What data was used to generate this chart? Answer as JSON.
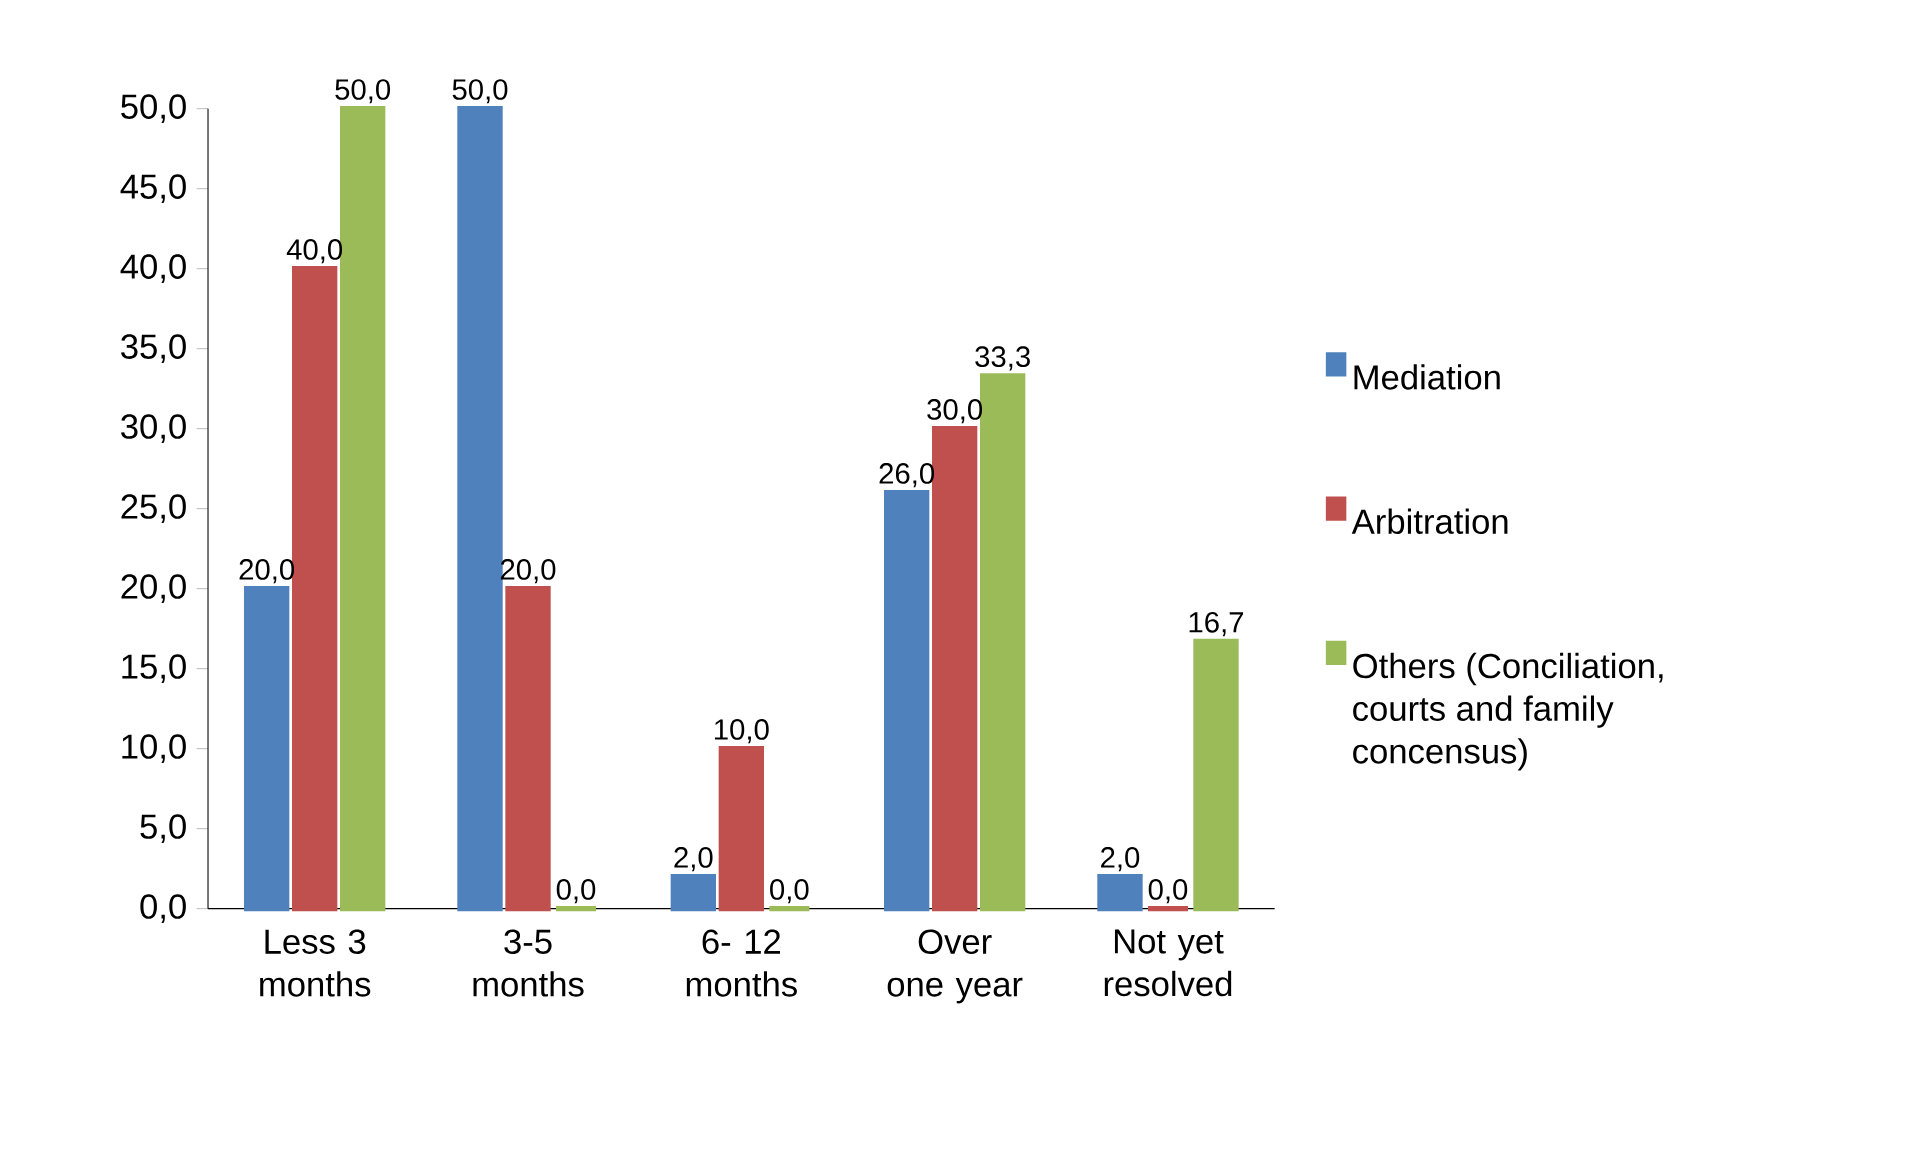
{
  "chart_data": {
    "type": "bar",
    "categories": [
      "Less 3 months",
      "3-5 months",
      "6- 12 months",
      "Over one year",
      "Not yet resolved"
    ],
    "series": [
      {
        "name": "Mediation",
        "color": "#4f81bd",
        "values": [
          20.0,
          50.0,
          2.0,
          26.0,
          2.0
        ],
        "value_labels": [
          "20,0",
          "50,0",
          "2,0",
          "26,0",
          "2,0"
        ]
      },
      {
        "name": "Arbitration",
        "color": "#c0504d",
        "values": [
          40.0,
          20.0,
          10.0,
          30.0,
          0.0
        ],
        "value_labels": [
          "40,0",
          "20,0",
          "10,0",
          "30,0",
          "0,0"
        ]
      },
      {
        "name": "Others (Conciliation, courts and family concensus)",
        "color": "#9bbb59",
        "values": [
          50.0,
          0.0,
          0.0,
          33.3,
          16.7
        ],
        "value_labels": [
          "50,0",
          "0,0",
          "0,0",
          "33,3",
          "16,7"
        ]
      }
    ],
    "ylim": [
      0,
      50
    ],
    "yticks": [
      {
        "value": 0,
        "label": "0,0"
      },
      {
        "value": 5,
        "label": "5,0"
      },
      {
        "value": 10,
        "label": "10,0"
      },
      {
        "value": 15,
        "label": "15,0"
      },
      {
        "value": 20,
        "label": "20,0"
      },
      {
        "value": 25,
        "label": "25,0"
      },
      {
        "value": 30,
        "label": "30,0"
      },
      {
        "value": 35,
        "label": "35,0"
      },
      {
        "value": 40,
        "label": "40,0"
      },
      {
        "value": 45,
        "label": "45,0"
      },
      {
        "value": 50,
        "label": "50,0"
      }
    ],
    "legend": "right"
  }
}
